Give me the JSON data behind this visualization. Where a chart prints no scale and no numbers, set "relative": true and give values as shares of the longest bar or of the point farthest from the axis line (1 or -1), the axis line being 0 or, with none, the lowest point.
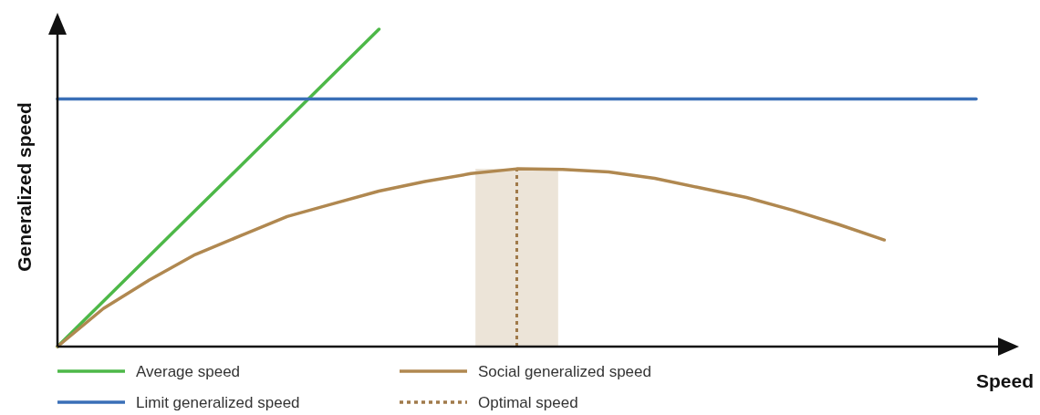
{
  "chart_data": {
    "type": "line",
    "relative": true,
    "xlabel": "Speed",
    "ylabel": "Generalized speed",
    "legend": "bottom",
    "categories": [
      null,
      null,
      null,
      null,
      null,
      null,
      null,
      null,
      null,
      null,
      null,
      null,
      null,
      null,
      null,
      null,
      null,
      null,
      null,
      null,
      null
    ],
    "series": [
      {
        "name": "Average speed",
        "color": "#4db848",
        "values": [
          0,
          0.143,
          0.286,
          0.429,
          0.571,
          0.714,
          0.857,
          1,
          null,
          null,
          null,
          null,
          null,
          null,
          null,
          null,
          null,
          null,
          null,
          null,
          null
        ]
      },
      {
        "name": "Limit generalized speed",
        "color": "#3a6fb7",
        "values": [
          0.78,
          0.78,
          0.78,
          0.78,
          0.78,
          0.78,
          0.78,
          0.78,
          0.78,
          0.78,
          0.78,
          0.78,
          0.78,
          0.78,
          0.78,
          0.78,
          0.78,
          0.78,
          0.78,
          0.78,
          0.78
        ]
      },
      {
        "name": "Social generalized speed",
        "color": "#b08850",
        "values": [
          0,
          0.12,
          0.21,
          0.29,
          0.35,
          0.41,
          0.45,
          0.49,
          0.52,
          0.545,
          0.56,
          0.558,
          0.55,
          0.53,
          0.5,
          0.47,
          0.43,
          0.385,
          0.336,
          null,
          null
        ]
      }
    ],
    "annotations": [
      "Optimal speed"
    ]
  }
}
